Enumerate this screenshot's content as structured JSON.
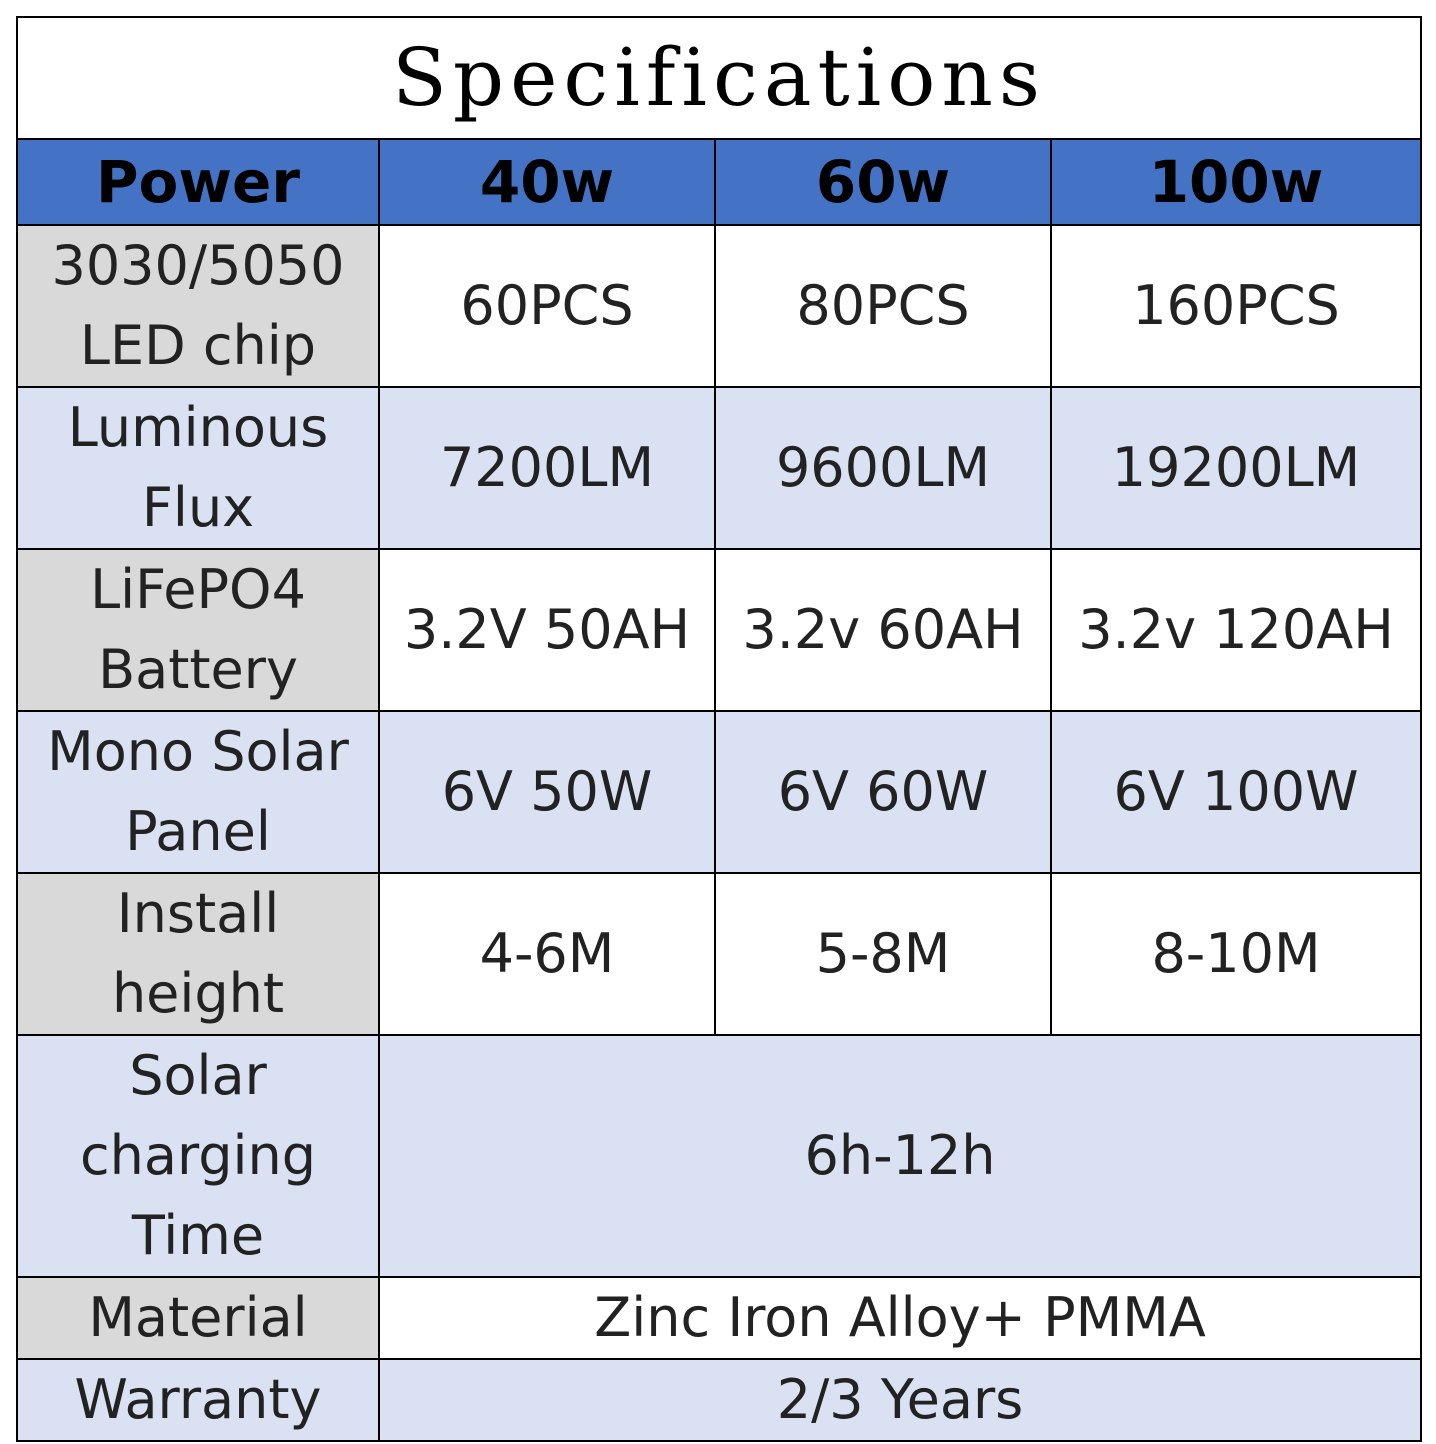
{
  "title": "Specifications",
  "header": [
    "Power",
    "40w",
    "60w",
    "100w"
  ],
  "rows": [
    {
      "label": "3030/5050 LED chip",
      "values": [
        "60PCS",
        "80PCS",
        "160PCS"
      ]
    },
    {
      "label": "Luminous Flux",
      "values": [
        "7200LM",
        "9600LM",
        "19200LM"
      ]
    },
    {
      "label": "LiFePO4 Battery",
      "values": [
        "3.2V 50AH",
        "3.2v 60AH",
        "3.2v 120AH"
      ]
    },
    {
      "label": "Mono Solar Panel",
      "values": [
        "6V 50W",
        "6V 60W",
        "6V 100W"
      ]
    },
    {
      "label": "Install height",
      "values": [
        "4-6M",
        "5-8M",
        "8-10M"
      ]
    },
    {
      "label": "Solar charging Time",
      "values": [
        "6h-12h"
      ]
    },
    {
      "label": "Material",
      "values": [
        "Zinc Iron Alloy+ PMMA"
      ]
    },
    {
      "label": "Warranty",
      "values": [
        "2/3 Years"
      ]
    }
  ]
}
